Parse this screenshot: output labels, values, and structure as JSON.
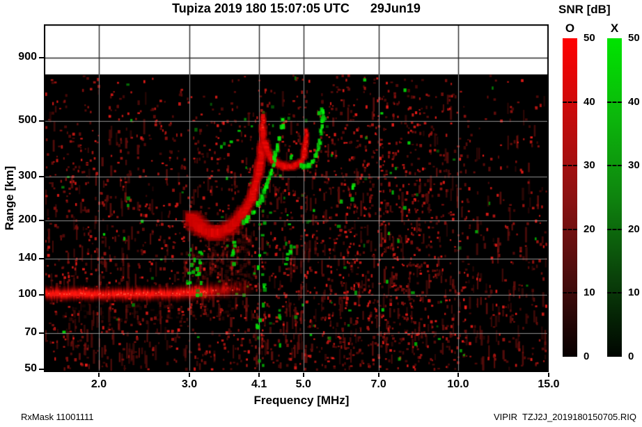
{
  "title": "Tupiza 2019 180 15:07:05 UTC      29Jun19",
  "legend": {
    "title": "SNR [dB]",
    "o_label": "O",
    "x_label": "X",
    "o_color": "#ff0000",
    "x_color": "#00e400",
    "ticks": [
      {
        "v": 50,
        "label": "50"
      },
      {
        "v": 40,
        "label": "40"
      },
      {
        "v": 30,
        "label": "30"
      },
      {
        "v": 20,
        "label": "20"
      },
      {
        "v": 10,
        "label": "10"
      },
      {
        "v": 0,
        "label": "0"
      }
    ]
  },
  "footer": {
    "left": "RxMask 11001111",
    "right": "VIPIR  TZJ2J_2019180150705.RIQ"
  },
  "chart_data": {
    "type": "heatmap",
    "title": "Tupiza ionogram, day 180 2019, 15:07:05 UTC",
    "xlabel": "Frequency [MHz]",
    "ylabel": "Range [km]",
    "snr_scale": {
      "min": 0,
      "max": 50,
      "units": "dB",
      "o_mode_color": "red",
      "x_mode_color": "green"
    },
    "x_axis": {
      "scale": "log",
      "range_mhz": [
        1.56,
        15
      ],
      "ticks": [
        {
          "v": 2,
          "label": "2.0"
        },
        {
          "v": 3,
          "label": "3.0"
        },
        {
          "v": 4.1,
          "label": "4.1"
        },
        {
          "v": 5,
          "label": "5.0"
        },
        {
          "v": 7,
          "label": "7.0"
        },
        {
          "v": 10,
          "label": "10.0"
        },
        {
          "v": 15,
          "label": "15.0"
        }
      ]
    },
    "y_axis": {
      "scale": "log",
      "range_km": [
        48,
        1230
      ],
      "data_top_km": 770,
      "ticks": [
        {
          "v": 900,
          "label": "900"
        },
        {
          "v": 500,
          "label": "500"
        },
        {
          "v": 300,
          "label": "300"
        },
        {
          "v": 200,
          "label": "200"
        },
        {
          "v": 140,
          "label": "140"
        },
        {
          "v": 100,
          "label": "100"
        },
        {
          "v": 70,
          "label": "70"
        },
        {
          "v": 50,
          "label": "50"
        }
      ]
    },
    "e_layer": {
      "range_km": 101,
      "freq_start_mhz": 1.56,
      "freq_full_to_mhz": 3.1,
      "freq_end_mhz": 4.0,
      "peak_snr_db": 50
    },
    "o_trace": {
      "mode": "O",
      "color": "red",
      "segments": [
        {
          "points": [
            [
              3.02,
              205
            ],
            [
              3.12,
              190
            ],
            [
              3.25,
              179
            ],
            [
              3.4,
              177
            ],
            [
              3.55,
              184
            ],
            [
              3.7,
              197
            ],
            [
              3.85,
              218
            ],
            [
              3.97,
              248
            ],
            [
              4.05,
              285
            ],
            [
              4.11,
              330
            ],
            [
              4.14,
              375
            ],
            [
              4.16,
              430
            ],
            [
              4.17,
              480
            ],
            [
              4.175,
              525
            ]
          ],
          "w": [
            11,
            5
          ]
        },
        {
          "points": [
            [
              4.2,
              408
            ],
            [
              4.27,
              370
            ],
            [
              4.36,
              347
            ],
            [
              4.5,
              334
            ],
            [
              4.65,
              328
            ],
            [
              4.8,
              330
            ],
            [
              4.93,
              340
            ],
            [
              5.0,
              355
            ],
            [
              5.04,
              390
            ],
            [
              5.06,
              430
            ],
            [
              5.07,
              465
            ]
          ],
          "w": [
            7,
            4
          ]
        }
      ]
    },
    "x_trace": {
      "mode": "X",
      "color": "green",
      "segments": [
        {
          "points": [
            [
              3.82,
              196
            ],
            [
              3.95,
              209
            ],
            [
              4.08,
              230
            ],
            [
              4.2,
              262
            ],
            [
              4.3,
              300
            ],
            [
              4.38,
              342
            ],
            [
              4.45,
              392
            ],
            [
              4.51,
              440
            ],
            [
              4.56,
              492
            ],
            [
              4.6,
              535
            ]
          ],
          "w": [
            5,
            4
          ]
        },
        {
          "points": [
            [
              4.72,
              358
            ],
            [
              4.82,
              341
            ],
            [
              4.95,
              332
            ],
            [
              5.08,
              331
            ],
            [
              5.2,
              342
            ],
            [
              5.3,
              368
            ],
            [
              5.38,
              412
            ],
            [
              5.42,
              462
            ],
            [
              5.45,
              520
            ],
            [
              5.46,
              560
            ]
          ],
          "w": [
            5,
            4
          ]
        }
      ]
    },
    "green_clusters": [
      [
        3.05,
        0.1,
        92,
        155,
        20
      ],
      [
        3.6,
        0.07,
        135,
        168,
        7
      ],
      [
        4.1,
        0.12,
        48,
        200,
        16
      ],
      [
        4.65,
        0.07,
        128,
        168,
        8
      ],
      [
        5.4,
        0.08,
        480,
        580,
        9
      ],
      [
        4.45,
        0.05,
        60,
        90,
        4
      ],
      [
        2.15,
        0.12,
        140,
        260,
        4
      ],
      [
        6.1,
        0.3,
        80,
        420,
        6
      ],
      [
        7.6,
        0.5,
        100,
        500,
        7
      ]
    ],
    "diffuse_red": [
      [
        2.9,
        4.0,
        108,
        150,
        140,
        0.16
      ],
      [
        3.3,
        3.95,
        150,
        185,
        90,
        0.15
      ],
      [
        1.6,
        3.6,
        80,
        97,
        70,
        0.12
      ]
    ],
    "noise": {
      "red_speckle_count": 2400,
      "green_speckle_count": 150,
      "dim_streak_count": 650,
      "dense_band_mhz": [
        5.5,
        8.5
      ],
      "sparse_above_mhz": 10.5
    }
  }
}
